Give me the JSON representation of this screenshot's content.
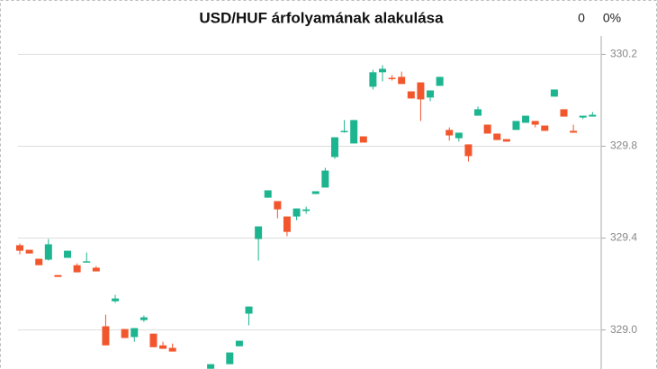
{
  "chart_data": {
    "type": "candlestick",
    "title": "USD/HUF árfolyamának alakulása",
    "change": "0",
    "change_percent": "0%",
    "up_color": "#1cb58f",
    "down_color": "#f2562c",
    "grid": true,
    "ylim": [
      328.83,
      330.28
    ],
    "yticks": [
      {
        "value": 329,
        "label": "329.0"
      },
      329.4,
      329.8,
      330.2
    ],
    "categories": [
      null,
      null,
      null,
      null,
      null,
      null,
      null,
      null,
      null,
      null,
      null,
      null,
      null,
      null,
      null,
      null,
      null,
      null,
      null,
      null,
      null,
      null,
      null,
      null,
      null,
      null,
      null,
      null,
      null,
      null,
      null,
      null,
      null,
      null,
      null,
      null,
      null,
      null,
      null,
      null,
      null,
      null,
      null,
      null,
      null,
      null,
      null,
      null,
      null,
      null,
      null,
      null,
      null,
      null,
      null,
      null,
      null,
      null,
      null,
      null,
      null
    ],
    "open": [
      329.369,
      329.349,
      329.31,
      329.306,
      329.239,
      329.314,
      329.282,
      329.298,
      329.271,
      329.016,
      329.125,
      329.004,
      328.969,
      329.043,
      328.984,
      328.933,
      328.922,
      null,
      null,
      null,
      328.831,
      null,
      328.851,
      328.929,
      329.071,
      329.396,
      329.576,
      329.561,
      329.494,
      329.494,
      329.518,
      329.592,
      329.62,
      329.753,
      329.863,
      329.812,
      329.843,
      330.059,
      330.122,
      330.098,
      330.102,
      330.039,
      330.078,
      330.012,
      330.063,
      329.871,
      329.835,
      329.808,
      329.933,
      329.894,
      329.855,
      329.831,
      329.871,
      329.902,
      329.91,
      329.89,
      330.016,
      329.961,
      329.867,
      329.925,
      329.929
    ],
    "high": [
      329.376,
      329.349,
      329.31,
      329.396,
      329.239,
      329.345,
      329.29,
      329.337,
      329.278,
      329.067,
      329.153,
      329.004,
      329.008,
      329.063,
      328.984,
      328.949,
      328.941,
      null,
      null,
      null,
      328.851,
      null,
      328.902,
      328.953,
      329.102,
      329.451,
      329.608,
      329.561,
      329.494,
      329.529,
      329.537,
      329.604,
      329.706,
      329.839,
      329.914,
      329.914,
      329.843,
      330.133,
      330.153,
      330.11,
      330.125,
      330.039,
      330.078,
      330.043,
      330.102,
      329.882,
      329.859,
      329.808,
      329.973,
      329.894,
      329.855,
      329.831,
      329.91,
      329.933,
      329.91,
      329.89,
      330.047,
      329.961,
      329.894,
      329.933,
      329.949
    ],
    "low": [
      329.329,
      329.333,
      329.282,
      329.302,
      329.231,
      329.314,
      329.251,
      329.294,
      329.255,
      328.933,
      329.118,
      328.965,
      328.949,
      329.035,
      328.925,
      328.918,
      328.906,
      null,
      null,
      null,
      328.831,
      null,
      328.851,
      328.929,
      329.02,
      329.302,
      329.576,
      329.486,
      329.408,
      329.478,
      329.506,
      329.592,
      329.62,
      329.745,
      329.859,
      329.812,
      329.816,
      330.047,
      330.082,
      330.086,
      330.071,
      330.008,
      329.91,
      329.996,
      330.063,
      329.824,
      329.82,
      329.733,
      329.933,
      329.855,
      329.827,
      329.82,
      329.871,
      329.902,
      329.882,
      329.867,
      330.016,
      329.929,
      329.859,
      329.918,
      329.929
    ],
    "close": [
      329.345,
      329.333,
      329.282,
      329.373,
      329.231,
      329.345,
      329.251,
      329.299,
      329.255,
      328.933,
      329.137,
      328.965,
      329.008,
      329.055,
      328.925,
      328.918,
      328.906,
      null,
      null,
      null,
      328.851,
      null,
      328.902,
      328.953,
      329.102,
      329.451,
      329.608,
      329.525,
      329.427,
      329.529,
      329.525,
      329.604,
      329.694,
      329.839,
      329.867,
      329.914,
      329.816,
      330.122,
      330.137,
      330.095,
      330.071,
      330.008,
      330.004,
      330.043,
      330.102,
      329.847,
      329.859,
      329.757,
      329.961,
      329.855,
      329.827,
      329.82,
      329.91,
      329.933,
      329.894,
      329.867,
      330.047,
      329.929,
      329.859,
      329.933,
      329.937
    ]
  }
}
